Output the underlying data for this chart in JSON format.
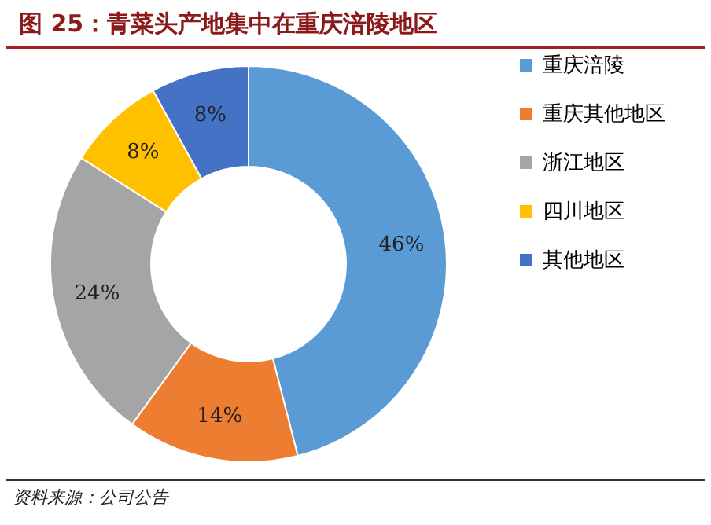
{
  "chart_data": {
    "type": "donut",
    "title": "图 25：青菜头产地集中在重庆涪陵地区",
    "categories": [
      "重庆涪陵",
      "重庆其他地区",
      "浙江地区",
      "四川地区",
      "其他地区"
    ],
    "values": [
      46,
      14,
      24,
      8,
      8
    ],
    "colors": [
      "#5b9bd5",
      "#ed7d31",
      "#a5a5a5",
      "#ffc000",
      "#4472c4"
    ],
    "value_labels": [
      "46%",
      "14%",
      "24%",
      "8%",
      "8%"
    ],
    "legend": "right",
    "annotations": [
      "资料来源：公司公告"
    ]
  }
}
